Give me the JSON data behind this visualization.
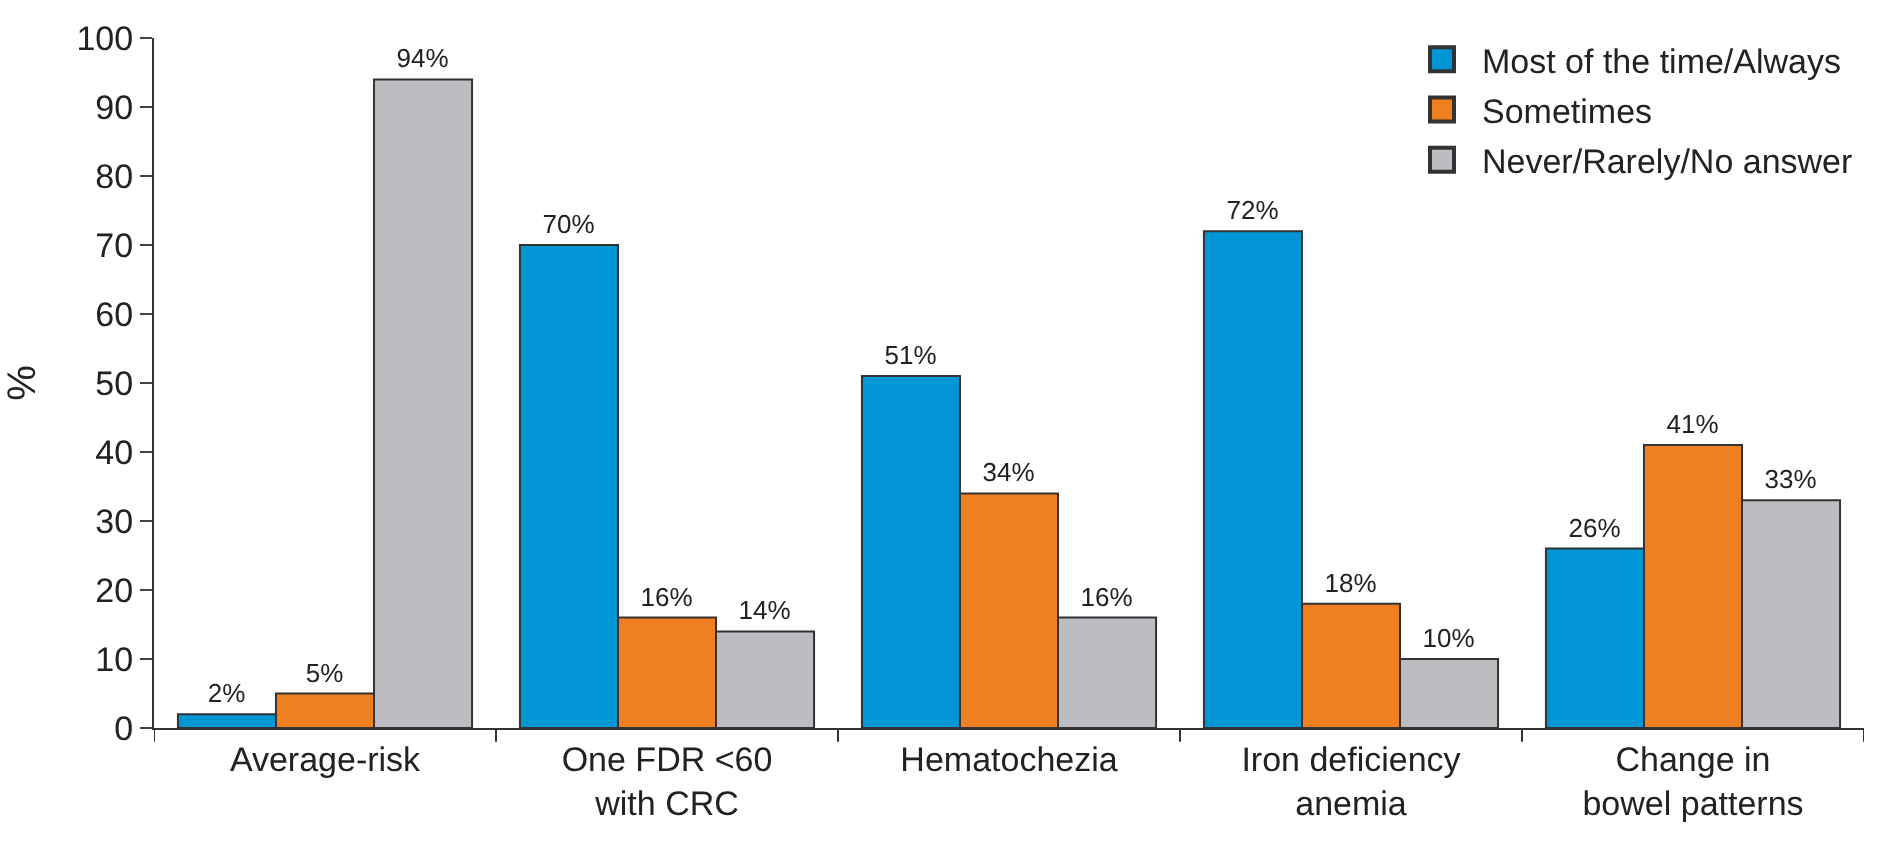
{
  "chart_data": {
    "type": "bar",
    "ylabel": "%",
    "categories": [
      "Average-risk",
      "One FDR <60\nwith CRC",
      "Hematochezia",
      "Iron deficiency\nanemia",
      "Change in\nbowel patterns"
    ],
    "series": [
      {
        "name": "Most of the time/Always",
        "color": "#0096d6",
        "values": [
          2,
          70,
          51,
          72,
          26
        ],
        "value_labels": [
          "2%",
          "70%",
          "51%",
          "72%",
          "26%"
        ]
      },
      {
        "name": "Sometimes",
        "color": "#f07f22",
        "values": [
          5,
          16,
          34,
          18,
          41
        ],
        "value_labels": [
          "5%",
          "16%",
          "34%",
          "18%",
          "41%"
        ]
      },
      {
        "name": "Never/Rarely/No answer",
        "color": "#bcbdc0",
        "values": [
          94,
          14,
          16,
          10,
          33
        ],
        "value_labels": [
          "94%",
          "14%",
          "16%",
          "10%",
          "33%"
        ]
      }
    ],
    "ylim": [
      0,
      100
    ],
    "yticks": [
      0,
      10,
      20,
      30,
      40,
      50,
      60,
      70,
      80,
      90,
      100
    ],
    "legend": "top right"
  }
}
